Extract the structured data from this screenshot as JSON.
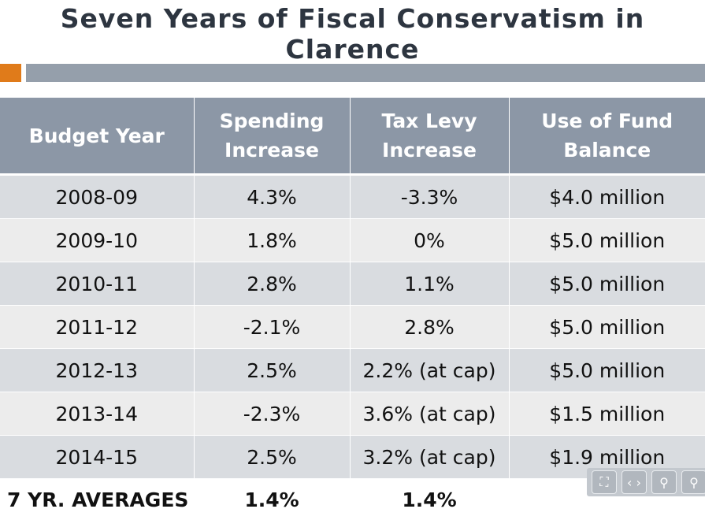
{
  "title": "Seven Years of Fiscal Conservatism in Clarence",
  "colors": {
    "accent": "#e07b1a",
    "header_bg": "#8c97a6",
    "bar": "#959fab",
    "row_odd": "#d9dce0",
    "row_even": "#ececec"
  },
  "table": {
    "headers": [
      "Budget Year",
      "Spending\nIncrease",
      "Tax Levy\nIncrease",
      "Use of Fund\nBalance"
    ],
    "rows": [
      [
        "2008-09",
        "4.3%",
        "-3.3%",
        "$4.0 million"
      ],
      [
        "2009-10",
        "1.8%",
        "0%",
        "$5.0 million"
      ],
      [
        "2010-11",
        "2.8%",
        "1.1%",
        "$5.0 million"
      ],
      [
        "2011-12",
        "-2.1%",
        "2.8%",
        "$5.0 million"
      ],
      [
        "2012-13",
        "2.5%",
        "2.2% (at cap)",
        "$5.0 million"
      ],
      [
        "2013-14",
        "-2.3%",
        "3.6% (at cap)",
        "$1.5 million"
      ],
      [
        "2014-15",
        "2.5%",
        "3.2% (at cap)",
        "$1.9 million"
      ]
    ],
    "averages": {
      "label": "7 YR. AVERAGES",
      "spending": "1.4%",
      "tax_levy": "1.4%"
    }
  },
  "viewer_controls": [
    {
      "icon": "fullscreen-icon",
      "glyph": "⛶"
    },
    {
      "icon": "fit-width-icon",
      "glyph": "‹ ›"
    },
    {
      "icon": "zoom-icon",
      "glyph": "⚲"
    },
    {
      "icon": "zoom-out-icon",
      "glyph": "⚲"
    }
  ]
}
